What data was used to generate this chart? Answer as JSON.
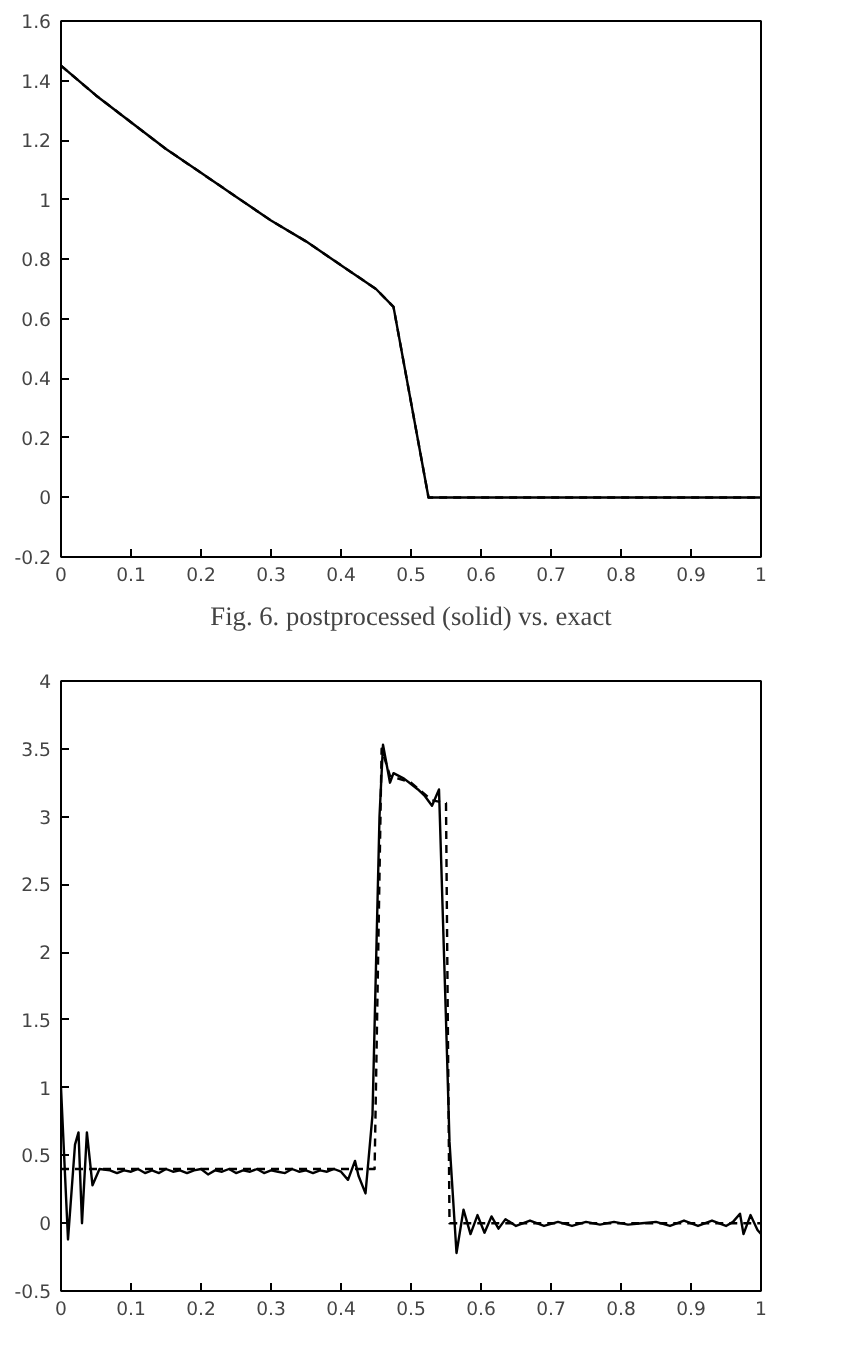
{
  "chart_data": [
    {
      "type": "line",
      "annotations": [
        "Fig. 6. postprocessed (solid) vs. exact"
      ],
      "xlim": [
        0,
        1
      ],
      "ylim": [
        -0.2,
        1.6
      ],
      "xticks": [
        0,
        0.1,
        0.2,
        0.3,
        0.4,
        0.5,
        0.6,
        0.7,
        0.8,
        0.9,
        1
      ],
      "yticks": [
        -0.2,
        0,
        0.2,
        0.4,
        0.6,
        0.8,
        1,
        1.2,
        1.4,
        1.6
      ],
      "grid": false,
      "series": [
        {
          "color": "#000000",
          "line_style": "solid",
          "x": [
            0,
            0.05,
            0.1,
            0.15,
            0.2,
            0.25,
            0.3,
            0.35,
            0.4,
            0.45,
            0.475,
            0.525,
            1
          ],
          "values": [
            1.45,
            1.35,
            1.26,
            1.17,
            1.09,
            1.01,
            0.93,
            0.86,
            0.78,
            0.7,
            0.64,
            0,
            0
          ]
        },
        {
          "color": "#000000",
          "line_style": "dashed",
          "x": [
            0,
            0.05,
            0.1,
            0.15,
            0.2,
            0.25,
            0.3,
            0.35,
            0.4,
            0.45,
            0.475,
            0.525,
            1
          ],
          "values": [
            1.45,
            1.35,
            1.26,
            1.17,
            1.09,
            1.01,
            0.93,
            0.86,
            0.78,
            0.7,
            0.64,
            0,
            0
          ]
        }
      ]
    },
    {
      "type": "line",
      "xlim": [
        0,
        1
      ],
      "ylim": [
        -0.5,
        4
      ],
      "xticks": [
        0,
        0.1,
        0.2,
        0.3,
        0.4,
        0.5,
        0.6,
        0.7,
        0.8,
        0.9,
        1
      ],
      "yticks": [
        -0.5,
        0,
        0.5,
        1,
        1.5,
        2,
        2.5,
        3,
        3.5,
        4
      ],
      "grid": false,
      "series": [
        {
          "color": "#000000",
          "line_style": "solid",
          "x": [
            0,
            0.01,
            0.02,
            0.025,
            0.03,
            0.037,
            0.045,
            0.055,
            0.07,
            0.08,
            0.09,
            0.1,
            0.11,
            0.12,
            0.13,
            0.14,
            0.15,
            0.16,
            0.17,
            0.18,
            0.19,
            0.2,
            0.21,
            0.22,
            0.23,
            0.24,
            0.25,
            0.26,
            0.27,
            0.28,
            0.29,
            0.3,
            0.31,
            0.32,
            0.33,
            0.34,
            0.35,
            0.36,
            0.37,
            0.38,
            0.39,
            0.4,
            0.41,
            0.42,
            0.425,
            0.435,
            0.445,
            0.455,
            0.46,
            0.47,
            0.475,
            0.49,
            0.5,
            0.51,
            0.52,
            0.53,
            0.54,
            0.55,
            0.555,
            0.565,
            0.575,
            0.585,
            0.595,
            0.605,
            0.615,
            0.625,
            0.635,
            0.65,
            0.67,
            0.69,
            0.71,
            0.73,
            0.75,
            0.77,
            0.79,
            0.81,
            0.83,
            0.85,
            0.87,
            0.89,
            0.91,
            0.93,
            0.95,
            0.96,
            0.97,
            0.975,
            0.985,
            0.995,
            1
          ],
          "values": [
            1.0,
            -0.12,
            0.58,
            0.67,
            0.0,
            0.67,
            0.28,
            0.4,
            0.39,
            0.37,
            0.39,
            0.38,
            0.4,
            0.37,
            0.39,
            0.37,
            0.4,
            0.38,
            0.39,
            0.37,
            0.39,
            0.4,
            0.36,
            0.39,
            0.38,
            0.4,
            0.37,
            0.39,
            0.38,
            0.4,
            0.37,
            0.39,
            0.38,
            0.37,
            0.4,
            0.38,
            0.39,
            0.37,
            0.39,
            0.38,
            0.4,
            0.38,
            0.32,
            0.46,
            0.35,
            0.22,
            0.8,
            3.0,
            3.53,
            3.25,
            3.32,
            3.28,
            3.24,
            3.2,
            3.15,
            3.08,
            3.2,
            1.5,
            0.6,
            -0.22,
            0.1,
            -0.08,
            0.06,
            -0.07,
            0.05,
            -0.04,
            0.03,
            -0.02,
            0.02,
            -0.02,
            0.01,
            -0.02,
            0.01,
            -0.01,
            0.01,
            -0.01,
            0.0,
            0.01,
            -0.02,
            0.02,
            -0.02,
            0.02,
            -0.02,
            0.01,
            0.07,
            -0.08,
            0.06,
            -0.05,
            -0.08
          ]
        },
        {
          "color": "#000000",
          "line_style": "dashed",
          "x": [
            0,
            0.448,
            0.458,
            0.47,
            0.5,
            0.53,
            0.55,
            0.555,
            1
          ],
          "values": [
            0.4,
            0.4,
            3.5,
            3.3,
            3.25,
            3.12,
            3.1,
            0,
            0
          ]
        }
      ]
    }
  ]
}
